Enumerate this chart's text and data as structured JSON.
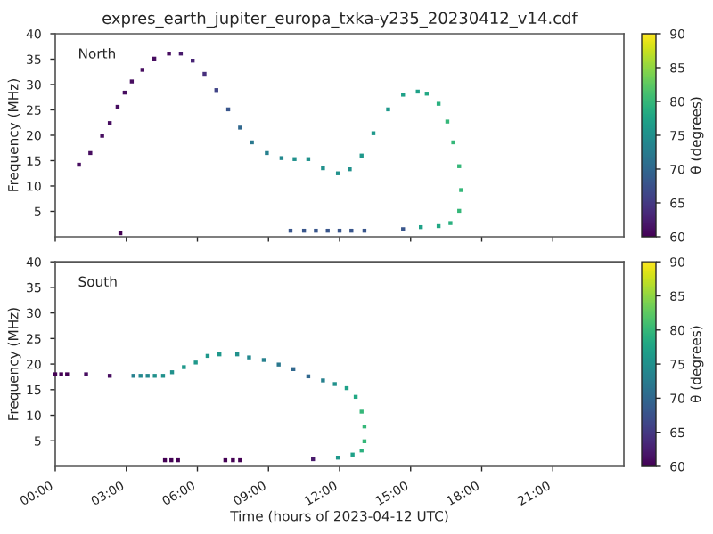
{
  "chart_data": [
    {
      "type": "scatter",
      "title": "expres_earth_jupiter_europa_txka-y235_20230412_v14.cdf",
      "ylabel": "Frequency (MHz)",
      "clabel": "θ (degrees)",
      "annotations": [
        "North"
      ],
      "marker": "square",
      "tick_labels": "y",
      "series": [
        {
          "x": [
            1.0,
            1.48,
            1.98,
            2.3,
            2.63,
            2.93,
            3.23,
            3.68,
            4.18,
            4.8,
            5.3,
            5.8,
            6.3,
            6.8,
            7.3,
            7.8,
            8.3,
            8.93,
            9.55,
            10.1,
            10.68,
            11.3,
            11.93,
            12.43,
            12.93,
            13.43,
            14.05,
            14.68,
            15.3,
            15.68,
            16.18,
            16.55,
            16.8,
            17.05,
            17.13,
            17.05,
            16.68,
            16.18,
            15.43,
            14.68,
            2.75,
            9.93,
            10.5,
            11.0,
            11.5,
            12.0,
            12.5,
            13.05
          ],
          "values": [
            14.2,
            16.5,
            19.9,
            22.4,
            25.6,
            28.4,
            30.6,
            32.9,
            35.1,
            36.1,
            36.1,
            34.7,
            32.1,
            28.9,
            25.1,
            21.5,
            18.6,
            16.5,
            15.5,
            15.3,
            15.3,
            13.5,
            12.5,
            13.3,
            16.0,
            20.4,
            25.1,
            28.0,
            28.6,
            28.2,
            26.2,
            22.7,
            18.6,
            13.9,
            9.2,
            5.1,
            2.7,
            2.1,
            1.9,
            1.5,
            0.7,
            1.2,
            1.2,
            1.2,
            1.2,
            1.2,
            1.2,
            1.2
          ],
          "cvalues": [
            61,
            61,
            61,
            61,
            61,
            61,
            61,
            61,
            61,
            61,
            62,
            63,
            64,
            66,
            68,
            70,
            72,
            73,
            74,
            75,
            75,
            75,
            75,
            75,
            76,
            76,
            76,
            77,
            77,
            78,
            79,
            80,
            80,
            80,
            80,
            80,
            79,
            78,
            77,
            68,
            60,
            68,
            68,
            68,
            68,
            68,
            68,
            68
          ]
        }
      ],
      "xlim": [
        0,
        24
      ],
      "xticks": [
        {
          "value": 0,
          "label": null
        },
        {
          "value": 3,
          "label": null
        },
        {
          "value": 6,
          "label": null
        },
        {
          "value": 9,
          "label": null
        },
        {
          "value": 12,
          "label": null
        },
        {
          "value": 15,
          "label": null
        },
        {
          "value": 18,
          "label": null
        },
        {
          "value": 21,
          "label": null
        }
      ],
      "ylim": [
        0,
        40
      ],
      "yticks": [
        5,
        10,
        15,
        20,
        25,
        30,
        35,
        40
      ],
      "clim": [
        60,
        90
      ],
      "cticks": [
        60,
        65,
        70,
        75,
        80,
        85,
        90
      ]
    },
    {
      "type": "scatter",
      "xlabel": "Time (hours of 2023-04-12 UTC)",
      "ylabel": "Frequency (MHz)",
      "clabel": "θ (degrees)",
      "annotations": [
        "South"
      ],
      "marker": "square",
      "series": [
        {
          "x": [
            0.0,
            0.25,
            0.5,
            1.3,
            2.3,
            3.3,
            3.6,
            3.9,
            4.2,
            4.55,
            4.93,
            5.43,
            5.93,
            6.43,
            6.93,
            7.68,
            8.18,
            8.8,
            9.43,
            10.05,
            10.68,
            11.3,
            11.8,
            12.3,
            12.68,
            12.93,
            13.05,
            13.05,
            12.93,
            12.55,
            11.93,
            10.88,
            4.63,
            4.9,
            5.18,
            7.18,
            7.5,
            7.8
          ],
          "values": [
            18.0,
            18.0,
            18.0,
            18.0,
            17.7,
            17.7,
            17.7,
            17.7,
            17.7,
            17.7,
            18.4,
            19.4,
            20.3,
            21.6,
            21.9,
            21.9,
            21.3,
            20.8,
            19.9,
            19.0,
            17.6,
            16.8,
            16.1,
            15.3,
            13.6,
            10.7,
            7.8,
            4.9,
            3.1,
            2.3,
            1.7,
            1.4,
            1.2,
            1.2,
            1.2,
            1.2,
            1.2,
            1.2
          ],
          "cvalues": [
            60,
            60,
            60,
            61,
            61,
            73,
            74,
            74,
            75,
            75,
            75,
            76,
            76,
            76,
            76,
            75,
            74,
            73,
            72,
            70,
            70,
            73,
            75,
            77,
            78,
            80,
            80,
            80,
            79,
            77,
            76,
            62,
            60,
            60,
            60,
            60,
            60,
            60
          ]
        }
      ],
      "xlim": [
        0,
        24
      ],
      "xticks": [
        {
          "value": 0,
          "label": "00:00"
        },
        {
          "value": 3,
          "label": "03:00"
        },
        {
          "value": 6,
          "label": "06:00"
        },
        {
          "value": 9,
          "label": "09:00"
        },
        {
          "value": 12,
          "label": "12:00"
        },
        {
          "value": 15,
          "label": "15:00"
        },
        {
          "value": 18,
          "label": "18:00"
        },
        {
          "value": 21,
          "label": "21:00"
        }
      ],
      "ylim": [
        0,
        40
      ],
      "yticks": [
        5,
        10,
        15,
        20,
        25,
        30,
        35,
        40
      ],
      "clim": [
        60,
        90
      ],
      "cticks": [
        60,
        65,
        70,
        75,
        80,
        85,
        90
      ]
    }
  ]
}
